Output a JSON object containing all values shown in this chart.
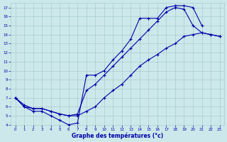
{
  "title": "Graphe des températures (°c)",
  "bg_color": "#cce8ea",
  "grid_color": "#aacccc",
  "line_color": "#0000aa",
  "xlim": [
    -0.5,
    23.5
  ],
  "ylim": [
    4,
    17.5
  ],
  "xticks": [
    0,
    1,
    2,
    3,
    4,
    5,
    6,
    7,
    8,
    9,
    10,
    11,
    12,
    13,
    14,
    15,
    16,
    17,
    18,
    19,
    20,
    21,
    22,
    23
  ],
  "yticks": [
    4,
    5,
    6,
    7,
    8,
    9,
    10,
    11,
    12,
    13,
    14,
    15,
    16,
    17
  ],
  "line1_x": [
    0,
    1,
    2,
    3,
    4,
    5,
    6,
    7,
    8,
    9,
    10,
    11,
    12,
    13,
    14,
    15,
    16,
    17,
    18,
    19,
    20,
    21
  ],
  "line1_y": [
    7.0,
    6.0,
    5.5,
    5.5,
    5.0,
    4.5,
    4.0,
    4.2,
    9.5,
    9.5,
    10.0,
    11.2,
    12.2,
    13.5,
    15.8,
    15.8,
    15.8,
    17.0,
    17.2,
    17.2,
    17.0,
    15.0
  ],
  "line2_x": [
    0,
    1,
    2,
    3,
    4,
    5,
    6,
    7,
    8,
    9,
    10,
    11,
    12,
    13,
    14,
    15,
    16,
    17,
    18,
    19,
    20,
    21,
    22,
    23
  ],
  "line2_y": [
    7.0,
    6.2,
    5.8,
    5.8,
    5.5,
    5.2,
    5.0,
    5.2,
    7.8,
    8.5,
    9.5,
    10.5,
    11.5,
    12.5,
    13.5,
    14.5,
    15.5,
    16.5,
    17.0,
    16.8,
    15.0,
    14.2,
    14.0,
    13.8
  ],
  "line3_x": [
    0,
    1,
    2,
    3,
    4,
    5,
    6,
    7,
    8,
    9,
    10,
    11,
    12,
    13,
    14,
    15,
    16,
    17,
    18,
    19,
    20,
    21,
    22,
    23
  ],
  "line3_y": [
    7.0,
    6.0,
    5.8,
    5.8,
    5.5,
    5.2,
    5.0,
    5.0,
    5.5,
    6.0,
    7.0,
    7.8,
    8.5,
    9.5,
    10.5,
    11.2,
    11.8,
    12.5,
    13.0,
    13.8,
    14.0,
    14.2,
    14.0,
    13.8
  ]
}
